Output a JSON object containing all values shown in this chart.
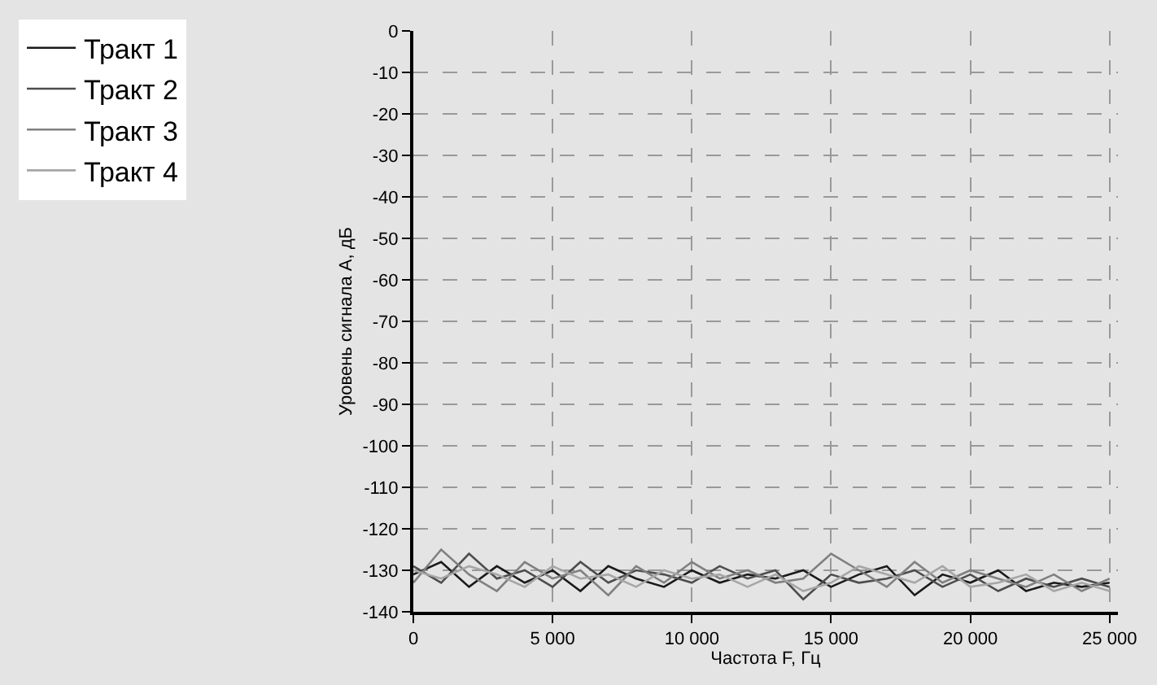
{
  "chart_data": {
    "type": "line",
    "xlabel": "Частота F, Гц",
    "ylabel": "Уровень сигнала A, дБ",
    "x": [
      0,
      1000,
      2000,
      3000,
      4000,
      5000,
      6000,
      7000,
      8000,
      9000,
      10000,
      11000,
      12000,
      13000,
      14000,
      15000,
      16000,
      17000,
      18000,
      19000,
      20000,
      21000,
      22000,
      23000,
      24000,
      25000
    ],
    "series": [
      {
        "name": "Тракт 1",
        "color": "#1a1a1a",
        "values": [
          -131,
          -128,
          -134,
          -129,
          -133,
          -130,
          -135,
          -129,
          -132,
          -134,
          -130,
          -133,
          -131,
          -132,
          -130,
          -134,
          -131,
          -129,
          -136,
          -131,
          -133,
          -130,
          -135,
          -133,
          -134,
          -133
        ]
      },
      {
        "name": "Тракт 2",
        "color": "#4d4d4d",
        "values": [
          -129,
          -133,
          -126,
          -132,
          -130,
          -134,
          -128,
          -133,
          -130,
          -131,
          -133,
          -129,
          -132,
          -130,
          -137,
          -131,
          -133,
          -132,
          -130,
          -134,
          -131,
          -135,
          -132,
          -134,
          -132,
          -134
        ]
      },
      {
        "name": "Тракт 3",
        "color": "#808080",
        "values": [
          -133,
          -125,
          -131,
          -135,
          -128,
          -132,
          -130,
          -136,
          -129,
          -133,
          -128,
          -132,
          -130,
          -133,
          -132,
          -126,
          -130,
          -134,
          -128,
          -133,
          -130,
          -132,
          -134,
          -131,
          -135,
          -132
        ]
      },
      {
        "name": "Тракт 4",
        "color": "#a6a6a6",
        "values": [
          -130,
          -132,
          -129,
          -131,
          -134,
          -129,
          -132,
          -131,
          -134,
          -130,
          -132,
          -131,
          -134,
          -131,
          -135,
          -133,
          -129,
          -131,
          -133,
          -129,
          -134,
          -133,
          -131,
          -135,
          -133,
          -135
        ]
      }
    ],
    "xlim": [
      0,
      25300
    ],
    "xticks": [
      {
        "value": 0,
        "label": "0"
      },
      {
        "value": 5000,
        "label": "5 000"
      },
      {
        "value": 10000,
        "label": "10 000"
      },
      {
        "value": 15000,
        "label": "15 000"
      },
      {
        "value": 20000,
        "label": "20 000"
      },
      {
        "value": 25000,
        "label": "25 000"
      }
    ],
    "ylim": [
      -140,
      0
    ],
    "yticks": [
      0,
      -10,
      -20,
      -30,
      -40,
      -50,
      -60,
      -70,
      -80,
      -90,
      -100,
      -110,
      -120,
      -130,
      -140
    ],
    "grid": true,
    "legend": "left",
    "marker": "none",
    "line_style": "solid"
  }
}
